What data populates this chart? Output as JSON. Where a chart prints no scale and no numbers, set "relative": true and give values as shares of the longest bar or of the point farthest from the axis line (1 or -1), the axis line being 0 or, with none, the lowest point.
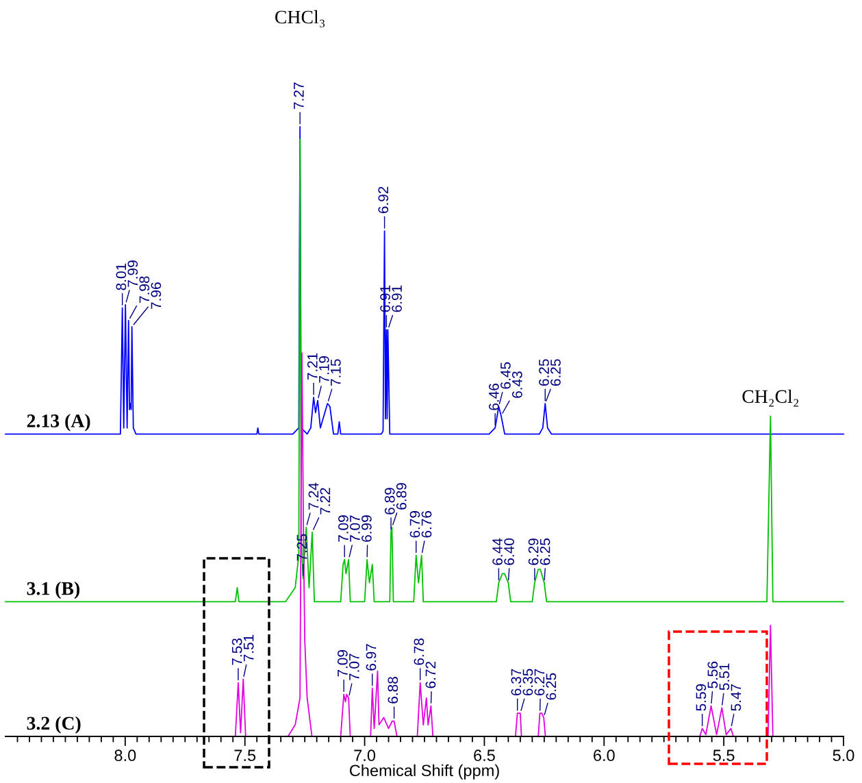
{
  "chart_data": {
    "type": "line",
    "relative": true,
    "xlim": [
      8.5,
      5.0
    ],
    "tick_labels": "x",
    "xlabel": "Chemical Shift (ppm)",
    "xticks": [
      {
        "value": 8.45,
        "label": null
      },
      {
        "value": 8.4,
        "label": null
      },
      {
        "value": 8.35,
        "label": null
      },
      {
        "value": 8.3,
        "label": null
      },
      {
        "value": 8.25,
        "label": null
      },
      {
        "value": 8.2,
        "label": null
      },
      {
        "value": 8.15,
        "label": null
      },
      {
        "value": 8.1,
        "label": null
      },
      {
        "value": 8.05,
        "label": null
      },
      {
        "value": 8.0,
        "label": "8.0"
      },
      {
        "value": 7.95,
        "label": null
      },
      {
        "value": 7.9,
        "label": null
      },
      {
        "value": 7.85,
        "label": null
      },
      {
        "value": 7.8,
        "label": null
      },
      {
        "value": 7.75,
        "label": null
      },
      {
        "value": 7.7,
        "label": null
      },
      {
        "value": 7.65,
        "label": null
      },
      {
        "value": 7.6,
        "label": null
      },
      {
        "value": 7.55,
        "label": null
      },
      {
        "value": 7.5,
        "label": "7.5"
      },
      {
        "value": 7.45,
        "label": null
      },
      {
        "value": 7.4,
        "label": null
      },
      {
        "value": 7.35,
        "label": null
      },
      {
        "value": 7.3,
        "label": null
      },
      {
        "value": 7.25,
        "label": null
      },
      {
        "value": 7.2,
        "label": null
      },
      {
        "value": 7.15,
        "label": null
      },
      {
        "value": 7.1,
        "label": null
      },
      {
        "value": 7.05,
        "label": null
      },
      {
        "value": 7.0,
        "label": "7.0"
      },
      {
        "value": 6.95,
        "label": null
      },
      {
        "value": 6.9,
        "label": null
      },
      {
        "value": 6.85,
        "label": null
      },
      {
        "value": 6.8,
        "label": null
      },
      {
        "value": 6.75,
        "label": null
      },
      {
        "value": 6.7,
        "label": null
      },
      {
        "value": 6.65,
        "label": null
      },
      {
        "value": 6.6,
        "label": null
      },
      {
        "value": 6.55,
        "label": null
      },
      {
        "value": 6.5,
        "label": "6.5"
      },
      {
        "value": 6.45,
        "label": null
      },
      {
        "value": 6.4,
        "label": null
      },
      {
        "value": 6.35,
        "label": null
      },
      {
        "value": 6.3,
        "label": null
      },
      {
        "value": 6.25,
        "label": null
      },
      {
        "value": 6.2,
        "label": null
      },
      {
        "value": 6.15,
        "label": null
      },
      {
        "value": 6.1,
        "label": null
      },
      {
        "value": 6.05,
        "label": null
      },
      {
        "value": 6.0,
        "label": "6.0"
      },
      {
        "value": 5.95,
        "label": null
      },
      {
        "value": 5.9,
        "label": null
      },
      {
        "value": 5.85,
        "label": null
      },
      {
        "value": 5.8,
        "label": null
      },
      {
        "value": 5.75,
        "label": null
      },
      {
        "value": 5.7,
        "label": null
      },
      {
        "value": 5.65,
        "label": null
      },
      {
        "value": 5.6,
        "label": null
      },
      {
        "value": 5.55,
        "label": null
      },
      {
        "value": 5.5,
        "label": "5.5"
      },
      {
        "value": 5.45,
        "label": null
      },
      {
        "value": 5.4,
        "label": null
      },
      {
        "value": 5.35,
        "label": null
      },
      {
        "value": 5.3,
        "label": null
      },
      {
        "value": 5.25,
        "label": null
      },
      {
        "value": 5.2,
        "label": null
      },
      {
        "value": 5.15,
        "label": null
      },
      {
        "value": 5.1,
        "label": null
      },
      {
        "value": 5.05,
        "label": null
      },
      {
        "value": 5.0,
        "label": "5.0"
      }
    ],
    "series": [
      {
        "name": "3.2 (C)",
        "color": "#e000e0",
        "x": [
          8.5,
          7.54,
          7.528,
          7.518,
          7.507,
          7.497,
          7.32,
          7.29,
          7.27,
          7.262,
          7.255,
          7.25,
          7.24,
          7.22,
          7.1,
          7.087,
          7.08,
          7.075,
          7.067,
          7.06,
          6.975,
          6.968,
          6.96,
          6.946,
          6.94,
          6.92,
          6.9,
          6.885,
          6.877,
          6.865,
          6.78,
          6.768,
          6.755,
          6.742,
          6.735,
          6.723,
          6.715,
          6.37,
          6.362,
          6.356,
          6.35,
          6.345,
          6.275,
          6.268,
          6.26,
          6.252,
          6.245,
          5.6,
          5.59,
          5.575,
          5.553,
          5.53,
          5.508,
          5.49,
          5.47,
          5.46,
          5.315,
          5.305,
          5.295,
          5.0
        ],
        "values": [
          0,
          0,
          0.088,
          0.006,
          0.094,
          0,
          0,
          0.019,
          0.063,
          0.629,
          0.315,
          0.157,
          0.063,
          0,
          0,
          0.069,
          0.057,
          0.069,
          0.063,
          0,
          0,
          0.079,
          0.013,
          0.107,
          0.019,
          0.031,
          0.013,
          0.025,
          0.025,
          0,
          0,
          0.088,
          0.019,
          0.063,
          0.019,
          0.05,
          0,
          0,
          0.038,
          0.038,
          0.038,
          0,
          0,
          0.038,
          0.038,
          0.031,
          0,
          0,
          0.013,
          0.003,
          0.05,
          0.003,
          0.047,
          0.003,
          0.013,
          0,
          0,
          0.182,
          0,
          0
        ]
      },
      {
        "name": "3.1 (B)",
        "color": "#00c000",
        "x": [
          8.5,
          7.54,
          7.532,
          7.525,
          7.33,
          7.29,
          7.275,
          7.27,
          7.265,
          7.257,
          7.244,
          7.232,
          7.219,
          7.21,
          7.1,
          7.09,
          7.084,
          7.078,
          7.067,
          7.06,
          7.0,
          6.99,
          6.98,
          6.968,
          6.96,
          6.895,
          6.89,
          6.886,
          6.88,
          6.795,
          6.785,
          6.775,
          6.762,
          6.755,
          6.45,
          6.44,
          6.425,
          6.416,
          6.4,
          6.39,
          6.3,
          6.29,
          6.275,
          6.266,
          6.25,
          6.24,
          5.32,
          5.305,
          5.295,
          5.0
        ],
        "values": [
          0.221,
          0.221,
          0.244,
          0.221,
          0.221,
          0.244,
          0.297,
          0.98,
          0.327,
          0.259,
          0.343,
          0.244,
          0.335,
          0.221,
          0.221,
          0.282,
          0.29,
          0.267,
          0.29,
          0.221,
          0.221,
          0.29,
          0.252,
          0.282,
          0.221,
          0.221,
          0.335,
          0.343,
          0.221,
          0.221,
          0.297,
          0.252,
          0.297,
          0.221,
          0.221,
          0.252,
          0.267,
          0.267,
          0.252,
          0.221,
          0.221,
          0.252,
          0.274,
          0.274,
          0.252,
          0.221,
          0.221,
          0.525,
          0.221,
          0.221
        ]
      },
      {
        "name": "2.13 (A)",
        "color": "#0000ff",
        "x": [
          8.5,
          8.02,
          8.012,
          8.006,
          7.999,
          7.992,
          7.986,
          7.982,
          7.978,
          7.975,
          7.972,
          7.966,
          7.955,
          7.45,
          7.446,
          7.442,
          7.3,
          7.275,
          7.27,
          7.265,
          7.24,
          7.225,
          7.213,
          7.205,
          7.196,
          7.185,
          7.17,
          7.155,
          7.145,
          7.13,
          7.112,
          7.106,
          7.1,
          6.93,
          6.923,
          6.917,
          6.913,
          6.909,
          6.906,
          6.903,
          6.895,
          6.48,
          6.455,
          6.44,
          6.43,
          6.415,
          6.27,
          6.256,
          6.246,
          6.236,
          6.22,
          5.0
        ],
        "values": [
          0.496,
          0.496,
          0.703,
          0.506,
          0.708,
          0.506,
          0.682,
          0.536,
          0.546,
          0.536,
          0.672,
          0.506,
          0.496,
          0.496,
          0.506,
          0.496,
          0.496,
          0.506,
          1,
          0.506,
          0.496,
          0.506,
          0.556,
          0.531,
          0.551,
          0.506,
          0.526,
          0.546,
          0.541,
          0.496,
          0.496,
          0.516,
          0.496,
          0.496,
          0.501,
          0.829,
          0.521,
          0.667,
          0.521,
          0.667,
          0.496,
          0.496,
          0.506,
          0.541,
          0.526,
          0.496,
          0.496,
          0.506,
          0.546,
          0.506,
          0.496,
          0.496
        ]
      }
    ],
    "annotations": [
      "CHCl₃",
      {
        "text": "CH₂Cl₂",
        "x": 5.305,
        "y": 0.525
      },
      {
        "text": "8.01",
        "x": 8.012,
        "y": 0.703
      },
      {
        "text": "7.99",
        "x": 7.999,
        "y": 0.708
      },
      {
        "text": "7.98",
        "x": 7.986,
        "y": 0.682
      },
      {
        "text": "7.96",
        "x": 7.972,
        "y": 0.672
      },
      {
        "text": "7.27",
        "x": 7.27,
        "y": 1
      },
      {
        "text": "7.21",
        "x": 7.213,
        "y": 0.556
      },
      {
        "text": "7.19",
        "x": 7.196,
        "y": 0.551
      },
      {
        "text": "7.15",
        "x": 7.155,
        "y": 0.546
      },
      {
        "text": "6.92",
        "x": 6.917,
        "y": 0.829
      },
      {
        "text": "6.91",
        "x": 6.909,
        "y": 0.667
      },
      {
        "text": "6.91",
        "x": 6.903,
        "y": 0.667
      },
      {
        "text": "6.46",
        "x": 6.455,
        "y": 0.506
      },
      {
        "text": "6.45",
        "x": 6.44,
        "y": 0.541
      },
      {
        "text": "6.43",
        "x": 6.43,
        "y": 0.526
      },
      {
        "text": "6.25",
        "x": 6.246,
        "y": 0.546
      },
      {
        "text": "6.25",
        "x": 6.246,
        "y": 0.546
      },
      {
        "text": "7.24",
        "x": 7.244,
        "y": 0.343
      },
      {
        "text": "7.25",
        "x": 7.257,
        "y": 0.259
      },
      {
        "text": "7.22",
        "x": 7.219,
        "y": 0.335
      },
      {
        "text": "7.09",
        "x": 7.084,
        "y": 0.29
      },
      {
        "text": "7.07",
        "x": 7.067,
        "y": 0.29
      },
      {
        "text": "6.99",
        "x": 6.99,
        "y": 0.29
      },
      {
        "text": "6.89",
        "x": 6.89,
        "y": 0.335
      },
      {
        "text": "6.89",
        "x": 6.886,
        "y": 0.343
      },
      {
        "text": "6.79",
        "x": 6.785,
        "y": 0.297
      },
      {
        "text": "6.76",
        "x": 6.762,
        "y": 0.297
      },
      {
        "text": "6.44",
        "x": 6.44,
        "y": 0.252
      },
      {
        "text": "6.40",
        "x": 6.4,
        "y": 0.252
      },
      {
        "text": "6.29",
        "x": 6.29,
        "y": 0.252
      },
      {
        "text": "6.25",
        "x": 6.25,
        "y": 0.252
      },
      {
        "text": "7.53",
        "x": 7.528,
        "y": 0.088
      },
      {
        "text": "7.51",
        "x": 7.507,
        "y": 0.094
      },
      {
        "text": "7.09",
        "x": 7.087,
        "y": 0.069
      },
      {
        "text": "7.07",
        "x": 7.067,
        "y": 0.063
      },
      {
        "text": "6.97",
        "x": 6.968,
        "y": 0.079
      },
      {
        "text": "6.88",
        "x": 6.877,
        "y": 0.025
      },
      {
        "text": "6.78",
        "x": 6.768,
        "y": 0.088
      },
      {
        "text": "6.72",
        "x": 6.723,
        "y": 0.05
      },
      {
        "text": "6.37",
        "x": 6.362,
        "y": 0.038
      },
      {
        "text": "6.35",
        "x": 6.35,
        "y": 0.038
      },
      {
        "text": "6.27",
        "x": 6.268,
        "y": 0.038
      },
      {
        "text": "6.25",
        "x": 6.252,
        "y": 0.031
      },
      {
        "text": "5.59",
        "x": 5.59,
        "y": 0.013
      },
      {
        "text": "5.56",
        "x": 5.553,
        "y": 0.05
      },
      {
        "text": "5.51",
        "x": 5.508,
        "y": 0.047
      },
      {
        "text": "5.47",
        "x": 5.47,
        "y": 0.013
      }
    ]
  }
}
